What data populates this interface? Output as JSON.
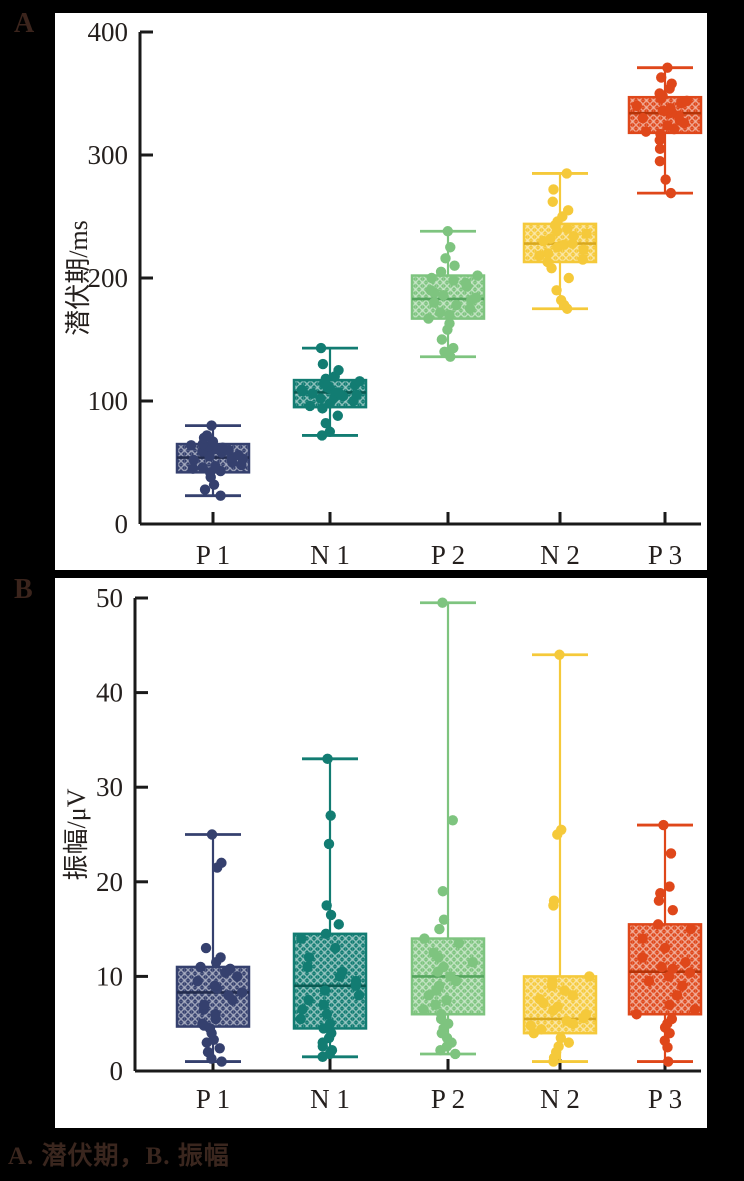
{
  "caption": "A. 潜伏期，B. 振幅",
  "page_bg": "#000000",
  "panel_bg": "#ffffff",
  "axis_color": "#1a1a1a",
  "label_color": "#3b241c",
  "colors": [
    "#35406e",
    "#127c72",
    "#7ec47f",
    "#f5c93a",
    "#df471a"
  ],
  "median_colors": [
    "#232c4e",
    "#0a5a52",
    "#55a55e",
    "#d9a81e",
    "#b53408"
  ],
  "chart_data": [
    {
      "type": "box",
      "panel_label": "A",
      "ylabel": "潜伏期/ms",
      "categories": [
        "P 1",
        "N 1",
        "P 2",
        "N 2",
        "P 3"
      ],
      "ylim": [
        0,
        400
      ],
      "ytick_step": 100,
      "grid": false,
      "legend": "none",
      "boxes": [
        {
          "lo": 23,
          "q1": 42,
          "med": 54,
          "q3": 65,
          "hi": 80
        },
        {
          "lo": 72,
          "q1": 95,
          "med": 107,
          "q3": 117,
          "hi": 143
        },
        {
          "lo": 136,
          "q1": 167,
          "med": 183,
          "q3": 202,
          "hi": 238
        },
        {
          "lo": 175,
          "q1": 213,
          "med": 228,
          "q3": 244,
          "hi": 285
        },
        {
          "lo": 269,
          "q1": 318,
          "med": 334,
          "q3": 347,
          "hi": 371
        }
      ],
      "points": [
        [
          23,
          28,
          32,
          38,
          42,
          43,
          45,
          46,
          47,
          48,
          50,
          52,
          53,
          54,
          55,
          56,
          57,
          58,
          59,
          60,
          61,
          62,
          63,
          64,
          65,
          67,
          70,
          72,
          80
        ],
        [
          72,
          75,
          82,
          88,
          94,
          96,
          98,
          100,
          102,
          103,
          104,
          105,
          106,
          107,
          108,
          109,
          110,
          111,
          112,
          113,
          114,
          116,
          118,
          120,
          125,
          130,
          143
        ],
        [
          136,
          140,
          143,
          150,
          158,
          163,
          167,
          170,
          172,
          175,
          178,
          180,
          182,
          184,
          186,
          188,
          190,
          193,
          196,
          198,
          200,
          202,
          205,
          210,
          216,
          225,
          238
        ],
        [
          175,
          178,
          182,
          190,
          200,
          208,
          213,
          215,
          218,
          220,
          223,
          225,
          227,
          228,
          230,
          232,
          234,
          236,
          238,
          240,
          243,
          246,
          250,
          255,
          262,
          272,
          285
        ],
        [
          269,
          280,
          295,
          305,
          312,
          317,
          319,
          321,
          324,
          326,
          328,
          330,
          332,
          334,
          335,
          336,
          338,
          340,
          342,
          344,
          346,
          348,
          350,
          354,
          358,
          363,
          371
        ]
      ]
    },
    {
      "type": "box",
      "panel_label": "B",
      "ylabel": "振幅/μV",
      "categories": [
        "P 1",
        "N 1",
        "P 2",
        "N 2",
        "P 3"
      ],
      "ylim": [
        0,
        50
      ],
      "ytick_step": 10,
      "grid": false,
      "legend": "none",
      "boxes": [
        {
          "lo": 1,
          "q1": 4.7,
          "med": 8.3,
          "q3": 11,
          "hi": 25
        },
        {
          "lo": 1.5,
          "q1": 4.5,
          "med": 9,
          "q3": 14.5,
          "hi": 33
        },
        {
          "lo": 1.8,
          "q1": 6,
          "med": 10,
          "q3": 14,
          "hi": 49.5
        },
        {
          "lo": 1,
          "q1": 4,
          "med": 5.5,
          "q3": 10,
          "hi": 44
        },
        {
          "lo": 1,
          "q1": 6,
          "med": 10.5,
          "q3": 15.5,
          "hi": 26
        }
      ],
      "points": [
        [
          1,
          1.3,
          2,
          2.4,
          3,
          3.3,
          4,
          4.5,
          4.8,
          5,
          5.5,
          6,
          6.5,
          7,
          7.5,
          8,
          8.3,
          8.7,
          9,
          9.5,
          10,
          10.4,
          10.8,
          11,
          11.5,
          12,
          13,
          21.5,
          22,
          25
        ],
        [
          1.5,
          1.8,
          2.2,
          2.6,
          3,
          3.5,
          4,
          4.5,
          5,
          5.5,
          6,
          6.5,
          7,
          7.5,
          8,
          8.5,
          9,
          9.5,
          10,
          10.5,
          11,
          12,
          13,
          14,
          14.5,
          15.5,
          16.5,
          17.5,
          24,
          27,
          33
        ],
        [
          1.8,
          2.2,
          2.6,
          3,
          3.5,
          4,
          4.5,
          5,
          5.5,
          6,
          6.5,
          7,
          7.5,
          8,
          8.5,
          9,
          9.5,
          10,
          10.5,
          11,
          11.5,
          12,
          12.5,
          13.5,
          14,
          15,
          16,
          19,
          26.5,
          49.5
        ],
        [
          1,
          1.4,
          2,
          2.6,
          3,
          3.5,
          4,
          4.4,
          4.8,
          5,
          5.3,
          5.6,
          6,
          6.4,
          6.8,
          7.2,
          7.6,
          8,
          8.5,
          9,
          9.5,
          10,
          17.5,
          18,
          25,
          25.5,
          44
        ],
        [
          1,
          2.5,
          3.2,
          4,
          4.6,
          5,
          5.5,
          6,
          6.5,
          7,
          8,
          9,
          9.5,
          10,
          10.4,
          10.8,
          11,
          11.5,
          12,
          13,
          14,
          15,
          15.5,
          17,
          18,
          18.8,
          19.5,
          23,
          26
        ]
      ]
    }
  ]
}
